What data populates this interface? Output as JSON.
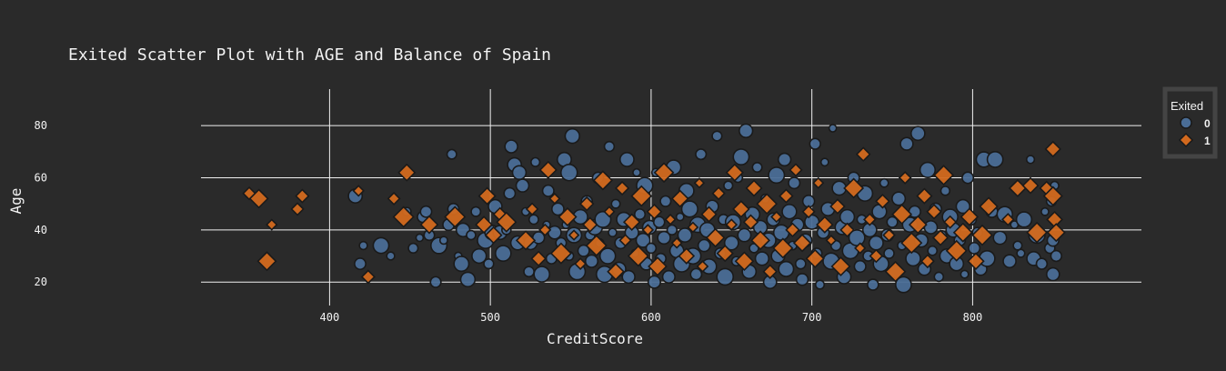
{
  "chart_data": {
    "type": "scatter",
    "title": "Exited Scatter Plot with AGE and Balance of Spain",
    "xlabel": "CreditScore",
    "ylabel": "Age",
    "xlim": [
      320,
      905
    ],
    "ylim": [
      11,
      94
    ],
    "xticks": [
      400,
      500,
      600,
      700,
      800
    ],
    "yticks": [
      20,
      40,
      60,
      80
    ],
    "grid": true,
    "legend": {
      "title": "Exited",
      "placement": "right"
    },
    "series": [
      {
        "name": "0",
        "marker": "circle",
        "color": "#4a6d96",
        "points": [
          [
            416,
            53
          ],
          [
            419,
            27
          ],
          [
            421,
            34
          ],
          [
            432,
            34
          ],
          [
            438,
            30
          ],
          [
            448,
            47
          ],
          [
            452,
            33
          ],
          [
            456,
            37
          ],
          [
            458,
            45
          ],
          [
            460,
            47
          ],
          [
            462,
            38
          ],
          [
            466,
            20
          ],
          [
            468,
            34
          ],
          [
            471,
            36
          ],
          [
            474,
            42
          ],
          [
            476,
            69
          ],
          [
            477,
            48
          ],
          [
            480,
            30
          ],
          [
            482,
            27
          ],
          [
            483,
            40
          ],
          [
            486,
            21
          ],
          [
            488,
            38
          ],
          [
            491,
            47
          ],
          [
            493,
            30
          ],
          [
            497,
            36
          ],
          [
            499,
            27
          ],
          [
            501,
            39
          ],
          [
            503,
            49
          ],
          [
            506,
            39
          ],
          [
            508,
            31
          ],
          [
            510,
            40
          ],
          [
            512,
            54
          ],
          [
            513,
            72
          ],
          [
            515,
            65
          ],
          [
            517,
            35
          ],
          [
            518,
            62
          ],
          [
            520,
            57
          ],
          [
            522,
            47
          ],
          [
            524,
            24
          ],
          [
            525,
            35
          ],
          [
            527,
            44
          ],
          [
            528,
            66
          ],
          [
            530,
            37
          ],
          [
            532,
            23
          ],
          [
            535,
            42
          ],
          [
            536,
            55
          ],
          [
            538,
            29
          ],
          [
            540,
            39
          ],
          [
            542,
            48
          ],
          [
            544,
            35
          ],
          [
            546,
            67
          ],
          [
            547,
            42
          ],
          [
            549,
            62
          ],
          [
            549,
            30
          ],
          [
            551,
            76
          ],
          [
            552,
            38
          ],
          [
            554,
            24
          ],
          [
            556,
            45
          ],
          [
            558,
            32
          ],
          [
            560,
            51
          ],
          [
            562,
            38
          ],
          [
            563,
            28
          ],
          [
            565,
            41
          ],
          [
            567,
            60
          ],
          [
            568,
            35
          ],
          [
            570,
            44
          ],
          [
            571,
            23
          ],
          [
            573,
            30
          ],
          [
            574,
            72
          ],
          [
            576,
            39
          ],
          [
            578,
            50
          ],
          [
            580,
            25
          ],
          [
            581,
            35
          ],
          [
            583,
            44
          ],
          [
            585,
            67
          ],
          [
            586,
            22
          ],
          [
            588,
            39
          ],
          [
            590,
            31
          ],
          [
            591,
            62
          ],
          [
            593,
            46
          ],
          [
            595,
            36
          ],
          [
            596,
            57
          ],
          [
            597,
            27
          ],
          [
            599,
            41
          ],
          [
            600,
            33
          ],
          [
            602,
            20
          ],
          [
            603,
            62
          ],
          [
            605,
            43
          ],
          [
            606,
            29
          ],
          [
            608,
            37
          ],
          [
            609,
            51
          ],
          [
            611,
            22
          ],
          [
            613,
            40
          ],
          [
            614,
            64
          ],
          [
            616,
            32
          ],
          [
            618,
            45
          ],
          [
            619,
            27
          ],
          [
            621,
            38
          ],
          [
            622,
            55
          ],
          [
            624,
            48
          ],
          [
            626,
            30
          ],
          [
            628,
            23
          ],
          [
            629,
            42
          ],
          [
            631,
            69
          ],
          [
            633,
            34
          ],
          [
            635,
            40
          ],
          [
            636,
            26
          ],
          [
            638,
            49
          ],
          [
            640,
            37
          ],
          [
            641,
            76
          ],
          [
            643,
            31
          ],
          [
            645,
            44
          ],
          [
            646,
            22
          ],
          [
            648,
            57
          ],
          [
            650,
            35
          ],
          [
            651,
            43
          ],
          [
            653,
            28
          ],
          [
            654,
            60
          ],
          [
            656,
            68
          ],
          [
            658,
            38
          ],
          [
            659,
            78
          ],
          [
            661,
            24
          ],
          [
            663,
            46
          ],
          [
            664,
            33
          ],
          [
            666,
            64
          ],
          [
            668,
            41
          ],
          [
            669,
            29
          ],
          [
            671,
            52
          ],
          [
            673,
            36
          ],
          [
            674,
            20
          ],
          [
            676,
            44
          ],
          [
            678,
            61
          ],
          [
            679,
            30
          ],
          [
            681,
            39
          ],
          [
            683,
            67
          ],
          [
            684,
            25
          ],
          [
            686,
            47
          ],
          [
            688,
            34
          ],
          [
            689,
            58
          ],
          [
            691,
            42
          ],
          [
            693,
            27
          ],
          [
            694,
            21
          ],
          [
            696,
            36
          ],
          [
            698,
            51
          ],
          [
            700,
            43
          ],
          [
            702,
            73
          ],
          [
            703,
            31
          ],
          [
            705,
            19
          ],
          [
            707,
            39
          ],
          [
            708,
            66
          ],
          [
            710,
            48
          ],
          [
            712,
            28
          ],
          [
            713,
            79
          ],
          [
            715,
            34
          ],
          [
            717,
            56
          ],
          [
            719,
            41
          ],
          [
            720,
            22
          ],
          [
            722,
            45
          ],
          [
            724,
            32
          ],
          [
            726,
            60
          ],
          [
            728,
            37
          ],
          [
            730,
            26
          ],
          [
            731,
            44
          ],
          [
            733,
            54
          ],
          [
            735,
            30
          ],
          [
            736,
            40
          ],
          [
            738,
            19
          ],
          [
            740,
            35
          ],
          [
            742,
            47
          ],
          [
            743,
            27
          ],
          [
            745,
            58
          ],
          [
            747,
            38
          ],
          [
            748,
            31
          ],
          [
            750,
            43
          ],
          [
            752,
            24
          ],
          [
            754,
            52
          ],
          [
            756,
            34
          ],
          [
            757,
            19
          ],
          [
            759,
            73
          ],
          [
            761,
            42
          ],
          [
            763,
            29
          ],
          [
            764,
            47
          ],
          [
            766,
            77
          ],
          [
            768,
            36
          ],
          [
            770,
            25
          ],
          [
            772,
            63
          ],
          [
            774,
            41
          ],
          [
            775,
            32
          ],
          [
            777,
            48
          ],
          [
            779,
            22
          ],
          [
            781,
            38
          ],
          [
            783,
            55
          ],
          [
            784,
            30
          ],
          [
            786,
            45
          ],
          [
            788,
            40
          ],
          [
            790,
            27
          ],
          [
            792,
            36
          ],
          [
            794,
            49
          ],
          [
            795,
            23
          ],
          [
            797,
            60
          ],
          [
            799,
            44
          ],
          [
            801,
            33
          ],
          [
            803,
            39
          ],
          [
            805,
            25
          ],
          [
            807,
            67
          ],
          [
            809,
            29
          ],
          [
            812,
            47
          ],
          [
            814,
            67
          ],
          [
            817,
            37
          ],
          [
            820,
            46
          ],
          [
            823,
            28
          ],
          [
            826,
            42
          ],
          [
            828,
            34
          ],
          [
            830,
            31
          ],
          [
            832,
            44
          ],
          [
            836,
            67
          ],
          [
            838,
            29
          ],
          [
            840,
            38
          ],
          [
            843,
            27
          ],
          [
            845,
            47
          ],
          [
            848,
            33
          ],
          [
            849,
            51
          ],
          [
            850,
            36
          ],
          [
            850,
            23
          ],
          [
            851,
            57
          ],
          [
            852,
            30
          ]
        ]
      },
      {
        "name": "1",
        "marker": "diamond",
        "color": "#d2691e",
        "points": [
          [
            350,
            54
          ],
          [
            356,
            52
          ],
          [
            361,
            28
          ],
          [
            364,
            42
          ],
          [
            380,
            48
          ],
          [
            383,
            53
          ],
          [
            418,
            55
          ],
          [
            424,
            22
          ],
          [
            440,
            52
          ],
          [
            446,
            45
          ],
          [
            448,
            62
          ],
          [
            462,
            42
          ],
          [
            478,
            45
          ],
          [
            496,
            42
          ],
          [
            498,
            53
          ],
          [
            502,
            38
          ],
          [
            506,
            46
          ],
          [
            510,
            43
          ],
          [
            522,
            36
          ],
          [
            526,
            48
          ],
          [
            530,
            29
          ],
          [
            534,
            40
          ],
          [
            536,
            63
          ],
          [
            540,
            52
          ],
          [
            544,
            31
          ],
          [
            548,
            45
          ],
          [
            552,
            38
          ],
          [
            556,
            27
          ],
          [
            560,
            50
          ],
          [
            562,
            42
          ],
          [
            566,
            34
          ],
          [
            570,
            59
          ],
          [
            574,
            47
          ],
          [
            578,
            24
          ],
          [
            582,
            56
          ],
          [
            584,
            36
          ],
          [
            588,
            43
          ],
          [
            592,
            30
          ],
          [
            594,
            53
          ],
          [
            598,
            40
          ],
          [
            602,
            47
          ],
          [
            604,
            26
          ],
          [
            608,
            62
          ],
          [
            612,
            44
          ],
          [
            616,
            35
          ],
          [
            618,
            52
          ],
          [
            622,
            30
          ],
          [
            626,
            41
          ],
          [
            630,
            58
          ],
          [
            632,
            26
          ],
          [
            636,
            46
          ],
          [
            640,
            37
          ],
          [
            642,
            54
          ],
          [
            646,
            31
          ],
          [
            650,
            42
          ],
          [
            652,
            62
          ],
          [
            656,
            48
          ],
          [
            658,
            28
          ],
          [
            662,
            43
          ],
          [
            664,
            56
          ],
          [
            668,
            36
          ],
          [
            672,
            50
          ],
          [
            674,
            24
          ],
          [
            678,
            45
          ],
          [
            682,
            33
          ],
          [
            684,
            53
          ],
          [
            688,
            40
          ],
          [
            690,
            63
          ],
          [
            694,
            35
          ],
          [
            698,
            47
          ],
          [
            702,
            29
          ],
          [
            704,
            58
          ],
          [
            708,
            42
          ],
          [
            712,
            36
          ],
          [
            716,
            49
          ],
          [
            718,
            26
          ],
          [
            722,
            40
          ],
          [
            726,
            56
          ],
          [
            730,
            33
          ],
          [
            732,
            69
          ],
          [
            736,
            44
          ],
          [
            740,
            30
          ],
          [
            744,
            51
          ],
          [
            748,
            38
          ],
          [
            752,
            24
          ],
          [
            756,
            46
          ],
          [
            758,
            60
          ],
          [
            762,
            35
          ],
          [
            766,
            42
          ],
          [
            770,
            53
          ],
          [
            772,
            28
          ],
          [
            776,
            47
          ],
          [
            780,
            37
          ],
          [
            782,
            61
          ],
          [
            786,
            43
          ],
          [
            790,
            32
          ],
          [
            794,
            39
          ],
          [
            798,
            45
          ],
          [
            802,
            28
          ],
          [
            806,
            38
          ],
          [
            810,
            49
          ],
          [
            822,
            44
          ],
          [
            828,
            56
          ],
          [
            836,
            57
          ],
          [
            840,
            39
          ],
          [
            846,
            56
          ],
          [
            850,
            71
          ],
          [
            850,
            53
          ],
          [
            851,
            44
          ],
          [
            852,
            39
          ]
        ]
      }
    ]
  }
}
